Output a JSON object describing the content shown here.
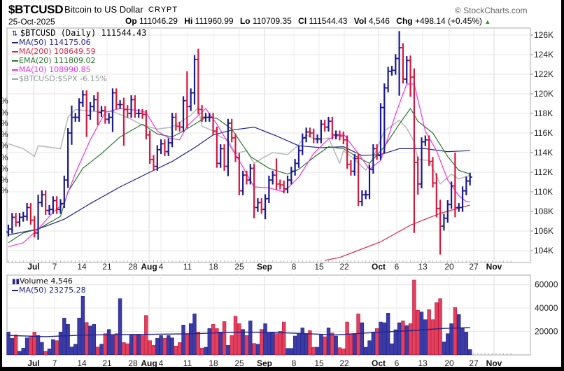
{
  "header": {
    "symbol": "$BTCUSD",
    "name": "Bitcoin to US Dollar",
    "exchange": "CRYPT",
    "date": "25-Oct-2025",
    "copyright": "© StockCharts.com",
    "ohlc": {
      "op_label": "Op",
      "op": "111046.29",
      "hi_label": "Hi",
      "hi": "111960.99",
      "lo_label": "Lo",
      "lo": "110709.35",
      "cl_label": "Cl",
      "cl": "111544.43",
      "vol_label": "Vol",
      "vol": "4,546",
      "chg_label": "Chg",
      "chg": "+498.14 (+0.45%)",
      "chg_arrow": "▲"
    }
  },
  "legend": {
    "price": "$BTCUSD (Daily) 111544.43",
    "ma50": "MA(50) 114175.06",
    "ma200": "MA(200) 108649.59",
    "ema20": "EMA(20) 111809.02",
    "ma10": "MA(10) 108990.85",
    "rel": "$BTCUSD:$SPX -6.15%",
    "volume": "Volume 4,546",
    "vol_ma50": "MA(50) 23275.28"
  },
  "colors": {
    "up": "#1a1a8e",
    "down": "#d6173f",
    "vol_up": "#3c3ca8",
    "vol_down": "#e2405e",
    "ma50": "#23238f",
    "ma200": "#d8284a",
    "ema20": "#2a7a2a",
    "ma10": "#f030f0",
    "rel": "#b8bcbc",
    "chg": "#1a9a1a"
  },
  "relative_axis_fragment": "%",
  "chart_data": [
    {
      "type": "ohlc",
      "title": "$BTCUSD (Daily)",
      "units": "thousand USD",
      "ylim": [
        103,
        127
      ],
      "yticks": [
        "104K",
        "106K",
        "108K",
        "110K",
        "112K",
        "114K",
        "116K",
        "118K",
        "120K",
        "122K",
        "124K",
        "126K"
      ],
      "ytick_values": [
        104,
        106,
        108,
        110,
        112,
        114,
        116,
        118,
        120,
        122,
        124,
        126
      ],
      "xticks": [
        "Jul",
        "7",
        "14",
        "21",
        "28",
        "Aug",
        "4",
        "11",
        "18",
        "25",
        "Sep",
        "8",
        "15",
        "22",
        "Oct",
        "6",
        "13",
        "20",
        "27",
        "Nov"
      ],
      "xticks_bold": [
        "Jul",
        "Aug",
        "Sep",
        "Oct",
        "Nov"
      ],
      "close": [
        106.2,
        107.4,
        106.9,
        107.4,
        107.5,
        108.4,
        107.1,
        105.8,
        108.9,
        109.7,
        108.1,
        108.2,
        109.1,
        108.2,
        108.8,
        111.2,
        116,
        117.6,
        117.6,
        119.1,
        119.9,
        117.8,
        118.7,
        119.4,
        118.1,
        118.3,
        117.4,
        117.6,
        120.1,
        118.9,
        118.9,
        118.4,
        118,
        119.4,
        118,
        118,
        117.9,
        115.8,
        113.3,
        112.6,
        114.3,
        114.9,
        114.1,
        115,
        117.6,
        116.7,
        116.6,
        119.3,
        118.7,
        120.1,
        123.5,
        118.4,
        117.6,
        117.6,
        117.6,
        116.2,
        112.9,
        114.4,
        112.6,
        117,
        115.5,
        113.5,
        110.1,
        111.7,
        111.2,
        112.4,
        108.4,
        108.9,
        108.2,
        109.3,
        111.2,
        111.7,
        110.8,
        110.7,
        110.3,
        111.2,
        112.1,
        112.9,
        114.2,
        115.5,
        116.1,
        116,
        115.4,
        115.4,
        116.9,
        116.6,
        117.2,
        115.8,
        115.8,
        115.7,
        115.3,
        112.8,
        112.1,
        113.4,
        109,
        109.7,
        109.7,
        112.3,
        114.4,
        113.7,
        118.6,
        120.6,
        122.3,
        122.4,
        123.6,
        124.7,
        121.5,
        123.4,
        121.7,
        113,
        110.8,
        115.1,
        115.3,
        113.1,
        110.9,
        108.3,
        106.5,
        107.3,
        108.7,
        110.6,
        108.4,
        108.4,
        110.1,
        111.1,
        111.5
      ],
      "high_low_extremes": [
        [
          8,
          109.7,
          105.1
        ],
        [
          16,
          116.5,
          110.4
        ],
        [
          17,
          118.8,
          114.8
        ],
        [
          21,
          119.9,
          115.6
        ],
        [
          24,
          120.2,
          116.8
        ],
        [
          28,
          120.3,
          116.1
        ],
        [
          31,
          119.6,
          114.7
        ],
        [
          48,
          122.3,
          116.5
        ],
        [
          50,
          123.7,
          118.9
        ],
        [
          51,
          124.6,
          117.9
        ],
        [
          59,
          117.3,
          111.6
        ],
        [
          62,
          113.8,
          109.8
        ],
        [
          66,
          112.6,
          107.3
        ],
        [
          69,
          109.6,
          107.2
        ],
        [
          72,
          113.4,
          110.2
        ],
        [
          101,
          118.7,
          113.9
        ],
        [
          105,
          126.4,
          119.8
        ],
        [
          108,
          123.9,
          119.7
        ],
        [
          109,
          122.6,
          105.8
        ],
        [
          110,
          113.6,
          109.7
        ],
        [
          115,
          111.9,
          107.4
        ],
        [
          116,
          109.2,
          103.6
        ],
        [
          120,
          114,
          107.4
        ]
      ],
      "series": [
        {
          "name": "MA(50)",
          "points": [
            [
              0,
              105.6
            ],
            [
              8,
              106.2
            ],
            [
              15,
              107.2
            ],
            [
              22,
              108.8
            ],
            [
              30,
              110.5
            ],
            [
              38,
              112
            ],
            [
              44,
              113.1
            ],
            [
              50,
              114.5
            ],
            [
              55,
              115.8
            ],
            [
              60,
              116.3
            ],
            [
              66,
              116.6
            ],
            [
              72,
              115.7
            ],
            [
              78,
              114.7
            ],
            [
              84,
              114.5
            ],
            [
              90,
              114.6
            ],
            [
              95,
              113.7
            ],
            [
              100,
              113.8
            ],
            [
              105,
              114.4
            ],
            [
              112,
              114.4
            ],
            [
              118,
              114.1
            ],
            [
              124,
              114.2
            ]
          ]
        },
        {
          "name": "MA(200)",
          "points": [
            [
              85,
              103.0
            ],
            [
              89,
              103.3
            ],
            [
              100,
              104.9
            ],
            [
              108,
              106.6
            ],
            [
              116,
              107.8
            ],
            [
              124,
              108.65
            ]
          ]
        },
        {
          "name": "EMA(20)",
          "points": [
            [
              0,
              104.8
            ],
            [
              4,
              105.8
            ],
            [
              8,
              106.2
            ],
            [
              14,
              107.5
            ],
            [
              16,
              110
            ],
            [
              20,
              112.4
            ],
            [
              25,
              113.9
            ],
            [
              30,
              115.6
            ],
            [
              36,
              116.9
            ],
            [
              40,
              115.9
            ],
            [
              44,
              115.6
            ],
            [
              47,
              116.2
            ],
            [
              53,
              117.6
            ],
            [
              56,
              117.5
            ],
            [
              60,
              116.4
            ],
            [
              65,
              113.6
            ],
            [
              70,
              112.4
            ],
            [
              75,
              111.8
            ],
            [
              78,
              112.3
            ],
            [
              82,
              113.5
            ],
            [
              86,
              114.6
            ],
            [
              90,
              114.4
            ],
            [
              94,
              113.5
            ],
            [
              97,
              112.9
            ],
            [
              101,
              114.6
            ],
            [
              105,
              116.9
            ],
            [
              108,
              118.5
            ],
            [
              110,
              117.2
            ],
            [
              114,
              116
            ],
            [
              118,
              113.6
            ],
            [
              121,
              112.2
            ],
            [
              124,
              111.8
            ]
          ]
        },
        {
          "name": "MA(10)",
          "points": [
            [
              0,
              104.4
            ],
            [
              4,
              104.8
            ],
            [
              8,
              106.2
            ],
            [
              12,
              107.9
            ],
            [
              15,
              108.9
            ],
            [
              18,
              111.9
            ],
            [
              22,
              115.3
            ],
            [
              26,
              118.1
            ],
            [
              30,
              118.5
            ],
            [
              35,
              118.3
            ],
            [
              37,
              118.1
            ],
            [
              40,
              116.2
            ],
            [
              43,
              115.5
            ],
            [
              46,
              115.3
            ],
            [
              48,
              116.7
            ],
            [
              53,
              118.5
            ],
            [
              56,
              116.9
            ],
            [
              60,
              114.4
            ],
            [
              62,
              113.2
            ],
            [
              66,
              110.5
            ],
            [
              70,
              110.4
            ],
            [
              74,
              110
            ],
            [
              78,
              111.5
            ],
            [
              82,
              113.9
            ],
            [
              86,
              115.4
            ],
            [
              90,
              115.9
            ],
            [
              94,
              113.9
            ],
            [
              97,
              112.3
            ],
            [
              100,
              113.2
            ],
            [
              104,
              117.9
            ],
            [
              107,
              121
            ],
            [
              109,
              121
            ],
            [
              112,
              116.2
            ],
            [
              115,
              114.2
            ],
            [
              118,
              111.2
            ],
            [
              121,
              109.6
            ],
            [
              123,
              109
            ],
            [
              124,
              108.99
            ]
          ]
        },
        {
          "name": "$BTCUSD:$SPX",
          "plotted_on_price_scale": true,
          "points": [
            [
              0,
              114.9
            ],
            [
              4,
              114.4
            ],
            [
              7,
              113.6
            ],
            [
              8,
              114.7
            ],
            [
              14,
              114.4
            ],
            [
              16,
              117.6
            ],
            [
              18,
              118.4
            ],
            [
              23,
              118.2
            ],
            [
              28,
              118.2
            ],
            [
              33,
              117.4
            ],
            [
              36,
              116.8
            ],
            [
              40,
              116.4
            ],
            [
              44,
              116.6
            ],
            [
              49,
              117.8
            ],
            [
              51,
              118.6
            ],
            [
              52,
              116.7
            ],
            [
              55,
              116.2
            ],
            [
              57,
              115.6
            ],
            [
              59,
              115.3
            ],
            [
              61,
              113.9
            ],
            [
              64,
              114.2
            ],
            [
              66,
              112.9
            ],
            [
              69,
              113.6
            ],
            [
              71,
              114
            ],
            [
              75,
              113.8
            ],
            [
              78,
              114.8
            ],
            [
              80,
              115.8
            ],
            [
              83,
              115.3
            ],
            [
              86,
              115.5
            ],
            [
              89,
              112.9
            ],
            [
              90,
              114.2
            ],
            [
              93,
              113.3
            ],
            [
              96,
              112.2
            ],
            [
              98,
              113.5
            ],
            [
              101,
              116.2
            ],
            [
              105,
              117.3
            ],
            [
              107,
              116.5
            ],
            [
              109,
              115.1
            ],
            [
              110,
              113.3
            ],
            [
              113,
              113.2
            ],
            [
              116,
              110.8
            ],
            [
              119,
              111.8
            ],
            [
              121,
              111.3
            ],
            [
              124,
              111.7
            ]
          ]
        }
      ]
    },
    {
      "type": "bar",
      "title": "Volume",
      "units": "thousand",
      "ylim": [
        0,
        66
      ],
      "yticks": [
        "20000",
        "40000",
        "60000"
      ],
      "ytick_values": [
        20,
        40,
        60
      ],
      "values": [
        19.4,
        14,
        17,
        3,
        5.6,
        14.4,
        16,
        19.4,
        16.4,
        10.6,
        3,
        5,
        13,
        12,
        19.4,
        31.4,
        26,
        6.6,
        9,
        31.4,
        50,
        27.6,
        24.6,
        26,
        6.6,
        9,
        18,
        21.6,
        17,
        18,
        48,
        10.4,
        9.4,
        17.4,
        17.4,
        17.4,
        16.4,
        33.6,
        12,
        8,
        14,
        16.4,
        14,
        16.4,
        14.4,
        7.4,
        10.4,
        25.4,
        18,
        26.6,
        35,
        19.4,
        5.6,
        6.4,
        22.4,
        26,
        22.4,
        19.4,
        28.4,
        8,
        16.4,
        33,
        26.6,
        21.6,
        16.4,
        29,
        9.6,
        9,
        21.6,
        26.6,
        19,
        19.4,
        18,
        20,
        28,
        5.4,
        5.4,
        16,
        18,
        23,
        18,
        20.6,
        6.4,
        6.4,
        17.4,
        15.4,
        23,
        18.6,
        16,
        6,
        5,
        28,
        17.4,
        17.4,
        35,
        27.4,
        6.4,
        12,
        19.4,
        22.4,
        28,
        27.4,
        35.6,
        9.4,
        21.4,
        27.4,
        29,
        25,
        26.6,
        64,
        38,
        36.6,
        30,
        38.6,
        30,
        44.6,
        48,
        11,
        18,
        26.6,
        40.4,
        34.4,
        22.6,
        19.4,
        4.4
      ],
      "series": [
        {
          "name": "MA(50)",
          "points": [
            [
              0,
              16.5
            ],
            [
              10,
              15.5
            ],
            [
              20,
              16.8
            ],
            [
              37,
              17.4
            ],
            [
              50,
              18
            ],
            [
              62,
              19.4
            ],
            [
              72,
              19
            ],
            [
              80,
              18
            ],
            [
              88,
              17
            ],
            [
              97,
              18.8
            ],
            [
              103,
              19.8
            ],
            [
              108,
              20.5
            ],
            [
              112,
              21.5
            ],
            [
              117,
              22.5
            ],
            [
              124,
              23.3
            ]
          ]
        }
      ]
    }
  ]
}
